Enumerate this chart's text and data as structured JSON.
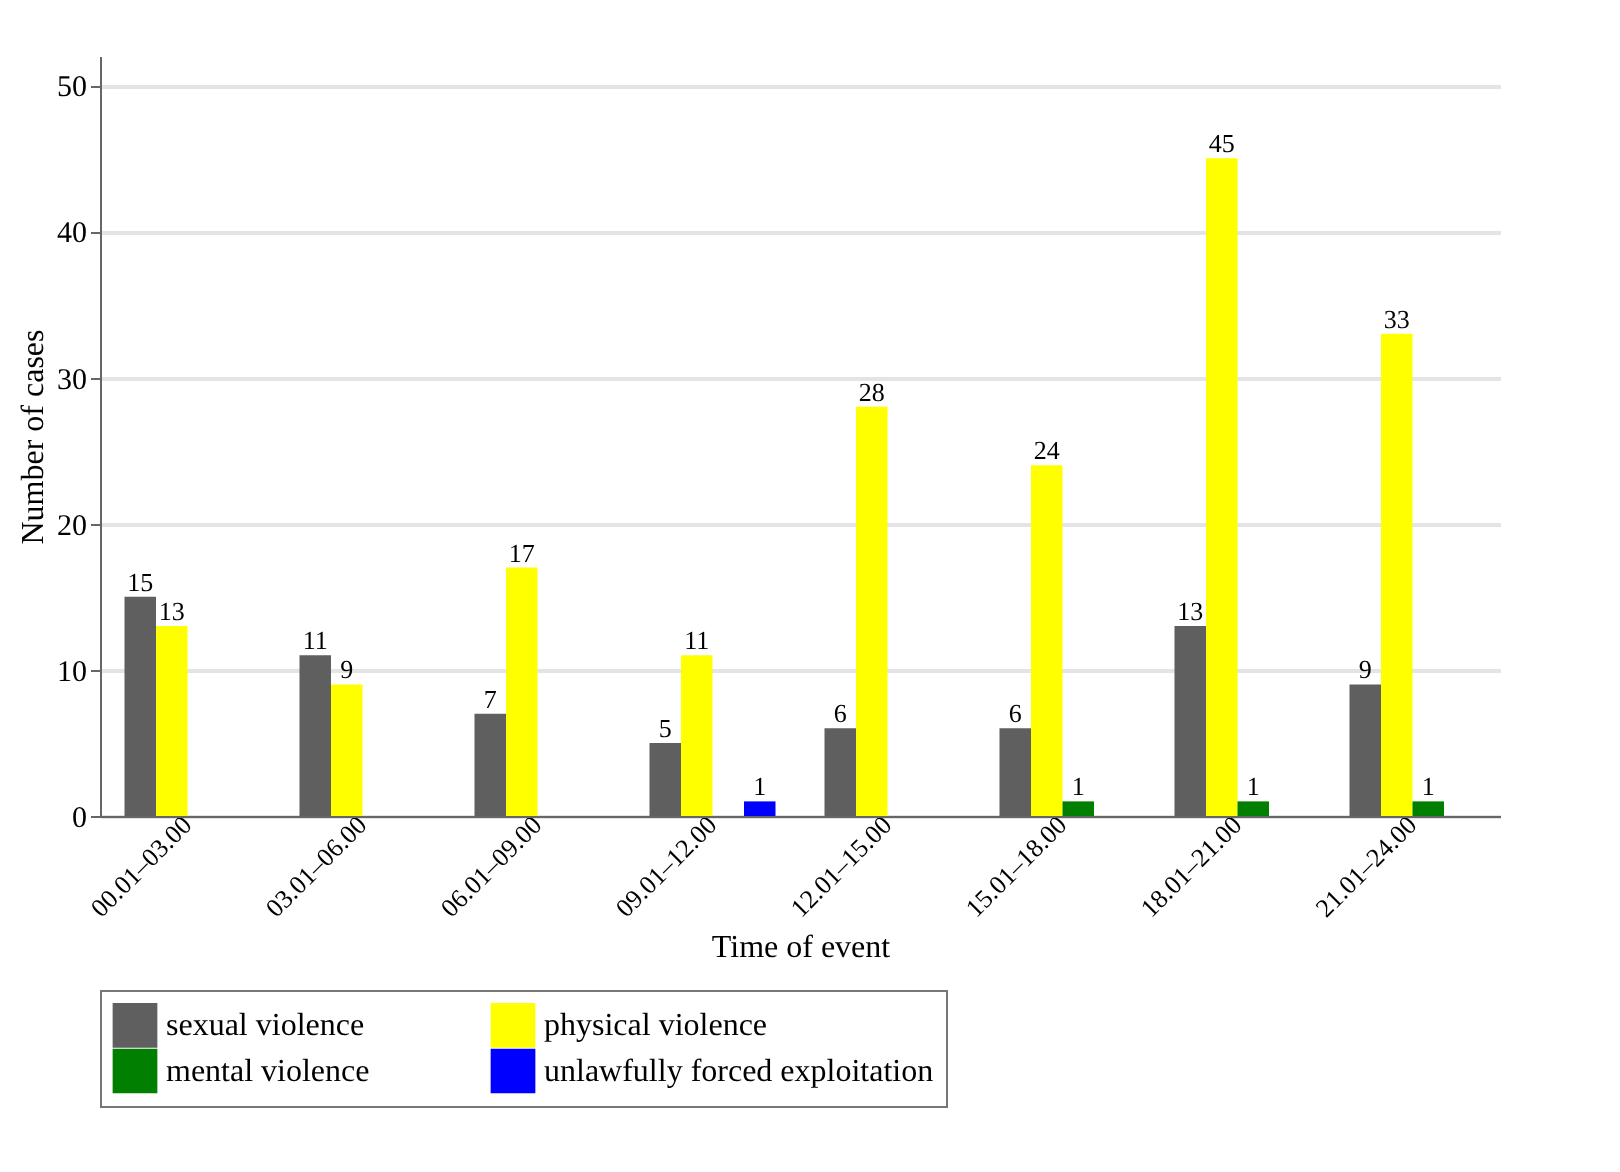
{
  "chart_data": {
    "type": "bar",
    "xlabel": "Time of event",
    "ylabel": "Number of cases",
    "categories": [
      "00.01–03.00",
      "03.01–06.00",
      "06.01–09.00",
      "09.01–12.00",
      "12.01–15.00",
      "15.01–18.00",
      "18.01–21.00",
      "21.01–24.00"
    ],
    "series": [
      {
        "name": "sexual violence",
        "color": "#5f5f5f",
        "values": [
          15,
          11,
          7,
          5,
          6,
          6,
          13,
          9
        ]
      },
      {
        "name": "physical violence",
        "color": "#ffff00",
        "values": [
          13,
          9,
          17,
          11,
          28,
          24,
          45,
          33
        ]
      },
      {
        "name": "mental violence",
        "color": "#007f00",
        "values": [
          null,
          null,
          null,
          null,
          null,
          1,
          1,
          1
        ]
      },
      {
        "name": "unlawfully forced exploitation",
        "color": "#0000ff",
        "values": [
          null,
          null,
          null,
          1,
          null,
          null,
          null,
          null
        ]
      }
    ],
    "ylim": [
      0,
      52
    ],
    "yticks": [
      0,
      10,
      20,
      30,
      40,
      50
    ],
    "grid": "y",
    "legend": "bottom",
    "data_labels": true
  }
}
